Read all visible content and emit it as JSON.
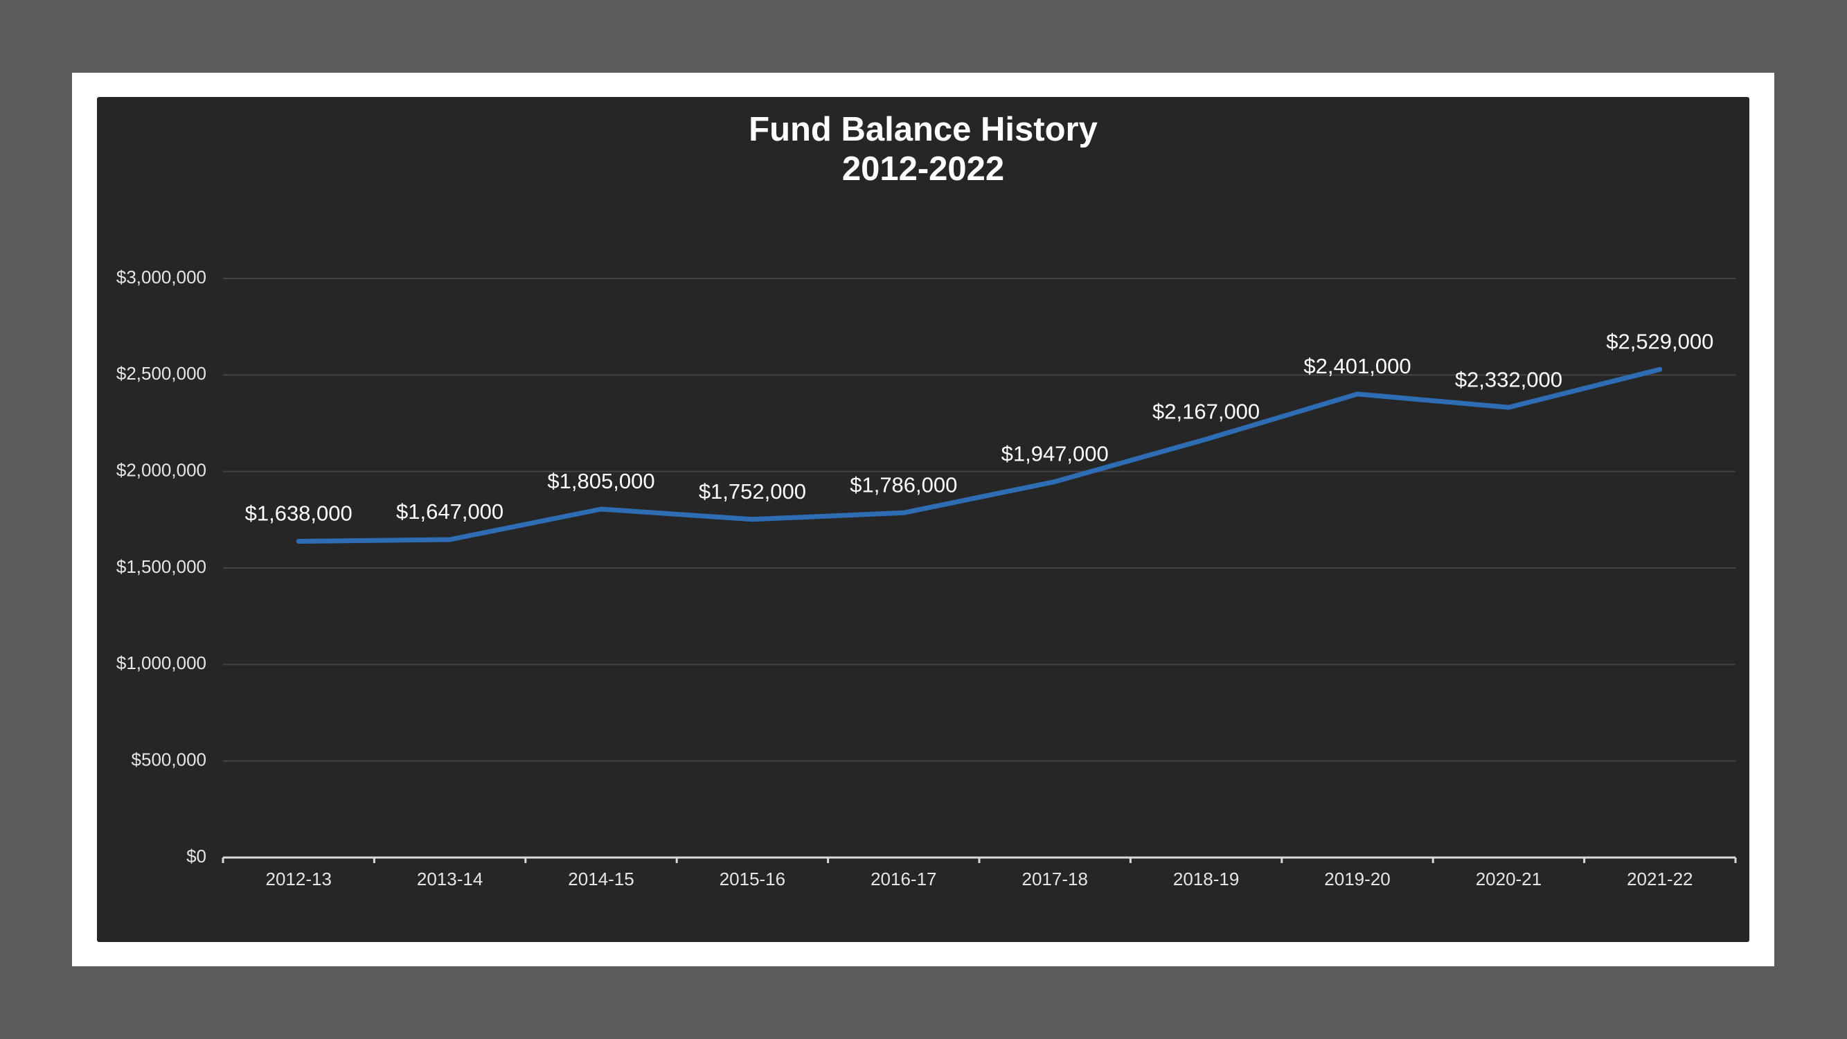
{
  "colors": {
    "outer_background": "#5b5b5b",
    "frame": "#ffffff",
    "chart_background": "#262626",
    "gridline": "#444444",
    "axis": "#d9d9d9",
    "line": "#2e6db4",
    "text": "#ffffff"
  },
  "chart_data": {
    "type": "line",
    "title": "Fund Balance History",
    "subtitle": "2012-2022",
    "xlabel": "",
    "ylabel": "",
    "categories": [
      "2012-13",
      "2013-14",
      "2014-15",
      "2015-16",
      "2016-17",
      "2017-18",
      "2018-19",
      "2019-20",
      "2020-21",
      "2021-22"
    ],
    "series": [
      {
        "values": [
          1638000,
          1647000,
          1805000,
          1752000,
          1786000,
          1947000,
          2167000,
          2401000,
          2332000,
          2529000
        ],
        "data_labels": [
          "$1,638,000",
          "$1,647,000",
          "$1,805,000",
          "$1,752,000",
          "$1,786,000",
          "$1,947,000",
          "$2,167,000",
          "$2,401,000",
          "$2,332,000",
          "$2,529,000"
        ]
      }
    ],
    "ylim": [
      0,
      3000000
    ],
    "yticks": [
      0,
      500000,
      1000000,
      1500000,
      2000000,
      2500000,
      3000000
    ],
    "ytick_labels": [
      "$0",
      "$500,000",
      "$1,000,000",
      "$1,500,000",
      "$2,000,000",
      "$2,500,000",
      "$3,000,000"
    ],
    "grid": true,
    "legend": "none"
  }
}
